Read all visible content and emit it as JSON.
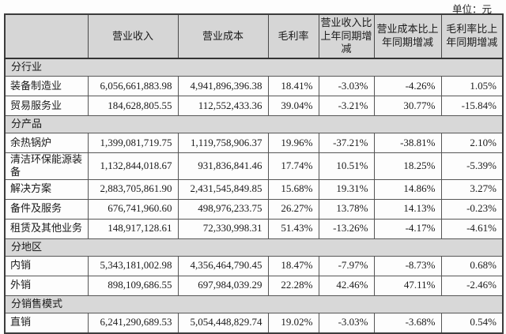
{
  "unit_label": "单位：元",
  "table": {
    "headers": [
      "",
      "营业收入",
      "营业成本",
      "毛利率",
      "营业收入比上年同期增减",
      "营业成本比上年同期增减",
      "毛利率比上年同期增减"
    ],
    "sections": [
      {
        "label": "分行业",
        "rows": [
          {
            "name": "装备制造业",
            "revenue": "6,056,661,883.98",
            "cost": "4,941,896,396.38",
            "margin": "18.41%",
            "rev_change": "-3.03%",
            "cost_change": "-4.26%",
            "margin_change": "1.05%"
          },
          {
            "name": "贸易服务业",
            "revenue": "184,628,805.55",
            "cost": "112,552,433.36",
            "margin": "39.04%",
            "rev_change": "-3.21%",
            "cost_change": "30.77%",
            "margin_change": "-15.84%"
          }
        ]
      },
      {
        "label": "分产品",
        "rows": [
          {
            "name": "余热锅炉",
            "revenue": "1,399,081,719.75",
            "cost": "1,119,758,906.37",
            "margin": "19.96%",
            "rev_change": "-37.21%",
            "cost_change": "-38.81%",
            "margin_change": "2.10%"
          },
          {
            "name": "清洁环保能源装备",
            "revenue": "1,132,844,018.67",
            "cost": "931,836,841.46",
            "margin": "17.74%",
            "rev_change": "10.51%",
            "cost_change": "18.25%",
            "margin_change": "-5.39%"
          },
          {
            "name": "解决方案",
            "revenue": "2,883,705,861.90",
            "cost": "2,431,545,849.85",
            "margin": "15.68%",
            "rev_change": "19.31%",
            "cost_change": "14.86%",
            "margin_change": "3.27%"
          },
          {
            "name": "备件及服务",
            "revenue": "676,741,960.60",
            "cost": "498,976,233.75",
            "margin": "26.27%",
            "rev_change": "13.78%",
            "cost_change": "14.13%",
            "margin_change": "-0.23%"
          },
          {
            "name": "租赁及其他业务",
            "revenue": "148,917,128.61",
            "cost": "72,330,998.31",
            "margin": "51.43%",
            "rev_change": "-13.26%",
            "cost_change": "-4.17%",
            "margin_change": "-4.61%"
          }
        ]
      },
      {
        "label": "分地区",
        "rows": [
          {
            "name": "内销",
            "revenue": "5,343,181,002.98",
            "cost": "4,356,464,790.45",
            "margin": "18.47%",
            "rev_change": "-7.97%",
            "cost_change": "-8.73%",
            "margin_change": "0.68%"
          },
          {
            "name": "外销",
            "revenue": "898,109,686.55",
            "cost": "697,984,039.29",
            "margin": "22.28%",
            "rev_change": "42.46%",
            "cost_change": "47.11%",
            "margin_change": "-2.46%"
          }
        ]
      },
      {
        "label": "分销售模式",
        "rows": [
          {
            "name": "直销",
            "revenue": "6,241,290,689.53",
            "cost": "5,054,448,829.74",
            "margin": "19.02%",
            "rev_change": "-3.03%",
            "cost_change": "-3.68%",
            "margin_change": "0.54%"
          }
        ]
      }
    ]
  }
}
